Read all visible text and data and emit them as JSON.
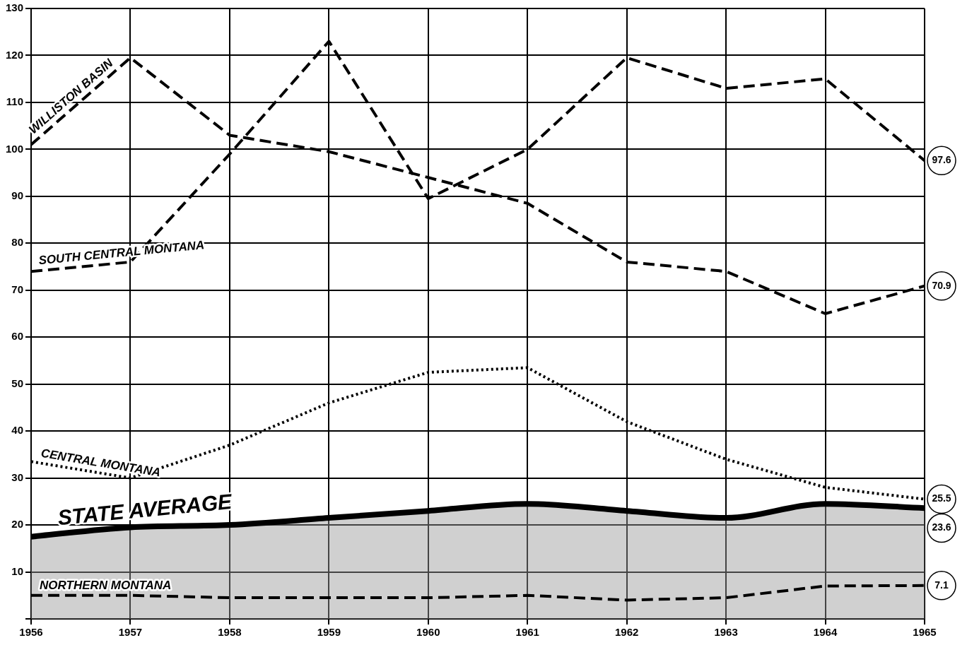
{
  "chart_data": {
    "type": "line",
    "x": [
      1956,
      1957,
      1958,
      1959,
      1960,
      1961,
      1962,
      1963,
      1964,
      1965
    ],
    "xlim": [
      1956,
      1965
    ],
    "xticks": [
      1956,
      1957,
      1958,
      1959,
      1960,
      1961,
      1962,
      1963,
      1964,
      1965
    ],
    "ylim": [
      0,
      130
    ],
    "yticks": [
      {
        "value": 0,
        "label": null
      },
      10,
      20,
      30,
      40,
      50,
      60,
      70,
      80,
      90,
      100,
      110,
      120,
      130
    ],
    "grid": true,
    "legend": false,
    "marker": "none",
    "series": [
      {
        "name": "WILLISTON BASIN",
        "color": "#000000",
        "line_style": "dashed",
        "values": [
          101,
          119.5,
          103,
          99.5,
          94,
          88.5,
          76,
          74,
          65,
          70.9
        ],
        "value_labels": [
          null,
          null,
          null,
          null,
          null,
          null,
          null,
          null,
          null,
          "70.9"
        ]
      },
      {
        "name": "SOUTH CENTRAL MONTANA",
        "color": "#000000",
        "line_style": "dashed",
        "values": [
          74,
          76,
          99,
          123,
          89.5,
          100,
          119.5,
          113,
          115,
          97.6
        ],
        "value_labels": [
          null,
          null,
          null,
          null,
          null,
          null,
          null,
          null,
          null,
          "97.6"
        ]
      },
      {
        "name": "CENTRAL MONTANA",
        "color": "#000000",
        "line_style": "dotted",
        "values": [
          33.5,
          30,
          37,
          46,
          52.5,
          53.5,
          42,
          34,
          28,
          25.5
        ],
        "value_labels": [
          null,
          null,
          null,
          null,
          null,
          null,
          null,
          null,
          null,
          "25.5"
        ]
      },
      {
        "name": "STATE AVERAGE",
        "type": "area",
        "color": "#000000",
        "line_style": "solid",
        "values": [
          17.5,
          19.5,
          20,
          21.5,
          23,
          24.5,
          23,
          21.5,
          24.5,
          23.6
        ],
        "value_labels": [
          null,
          null,
          null,
          null,
          null,
          null,
          null,
          null,
          null,
          "23.6"
        ]
      },
      {
        "name": "NORTHERN MONTANA",
        "color": "#000000",
        "line_style": "dashed",
        "values": [
          5,
          5,
          4.5,
          4.5,
          4.5,
          5,
          4,
          4.5,
          7,
          7.1
        ],
        "value_labels": [
          null,
          null,
          null,
          null,
          null,
          null,
          null,
          null,
          null,
          "7.1"
        ]
      }
    ]
  }
}
